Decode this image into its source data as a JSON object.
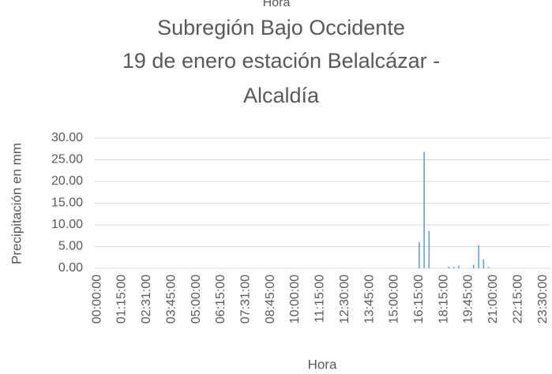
{
  "fragment": "Hora",
  "chart_data": {
    "type": "bar",
    "title": [
      "Subregión Bajo Occidente",
      "19 de enero estación Belalcázar -",
      "Alcaldía"
    ],
    "x_label": "Hora",
    "y_label": "Precipitación en mm",
    "color": "#5b9bd5",
    "grid": true,
    "ylim": [
      0,
      30
    ],
    "yticks": [
      {
        "value": 0,
        "label": "0.00"
      },
      {
        "value": 5,
        "label": "5.00"
      },
      {
        "value": 10,
        "label": "10.00"
      },
      {
        "value": 15,
        "label": "15.00"
      },
      {
        "value": 20,
        "label": "20.00"
      },
      {
        "value": 25,
        "label": "25.00"
      },
      {
        "value": 30,
        "label": "30.00"
      }
    ],
    "categories": [
      "00:00:00",
      null,
      null,
      null,
      null,
      "01:15:00",
      null,
      null,
      null,
      null,
      "02:31:00",
      null,
      null,
      null,
      null,
      "03:45:00",
      null,
      null,
      null,
      null,
      "05:00:00",
      null,
      null,
      null,
      null,
      "06:15:00",
      null,
      null,
      null,
      null,
      "07:31:00",
      null,
      null,
      null,
      null,
      "08:45:00",
      null,
      null,
      null,
      null,
      "10:00:00",
      null,
      null,
      null,
      null,
      "11:15:00",
      null,
      null,
      null,
      null,
      "12:30:00",
      null,
      null,
      null,
      null,
      "13:45:00",
      null,
      null,
      null,
      null,
      "15:00:00",
      null,
      null,
      null,
      null,
      "16:15:00",
      null,
      null,
      null,
      null,
      "18:15:00",
      null,
      null,
      null,
      null,
      "19:45:00",
      null,
      null,
      null,
      null,
      "21:00:00",
      null,
      null,
      null,
      null,
      "22:15:00",
      null,
      null,
      null,
      null,
      "23:30:00",
      null
    ],
    "values": [
      0,
      0,
      0,
      0,
      0,
      0,
      0,
      0,
      0,
      0,
      0,
      0,
      0,
      0,
      0,
      0,
      0,
      0,
      0,
      0,
      0,
      0,
      0,
      0,
      0,
      0,
      0,
      0,
      0,
      0,
      0,
      0,
      0,
      0,
      0,
      0,
      0,
      0,
      0,
      0,
      0,
      0,
      0,
      0,
      0,
      0,
      0,
      0,
      0,
      0,
      0,
      0,
      0,
      0,
      0,
      0,
      0,
      0,
      0,
      0,
      0,
      0,
      0,
      0,
      0,
      6.0,
      26.8,
      8.6,
      0,
      0,
      0,
      0.4,
      0.3,
      0.6,
      0,
      0,
      0.8,
      5.3,
      2.0,
      0.3,
      0,
      0,
      0,
      0,
      0,
      0,
      0,
      0,
      0,
      0,
      0,
      0
    ]
  }
}
